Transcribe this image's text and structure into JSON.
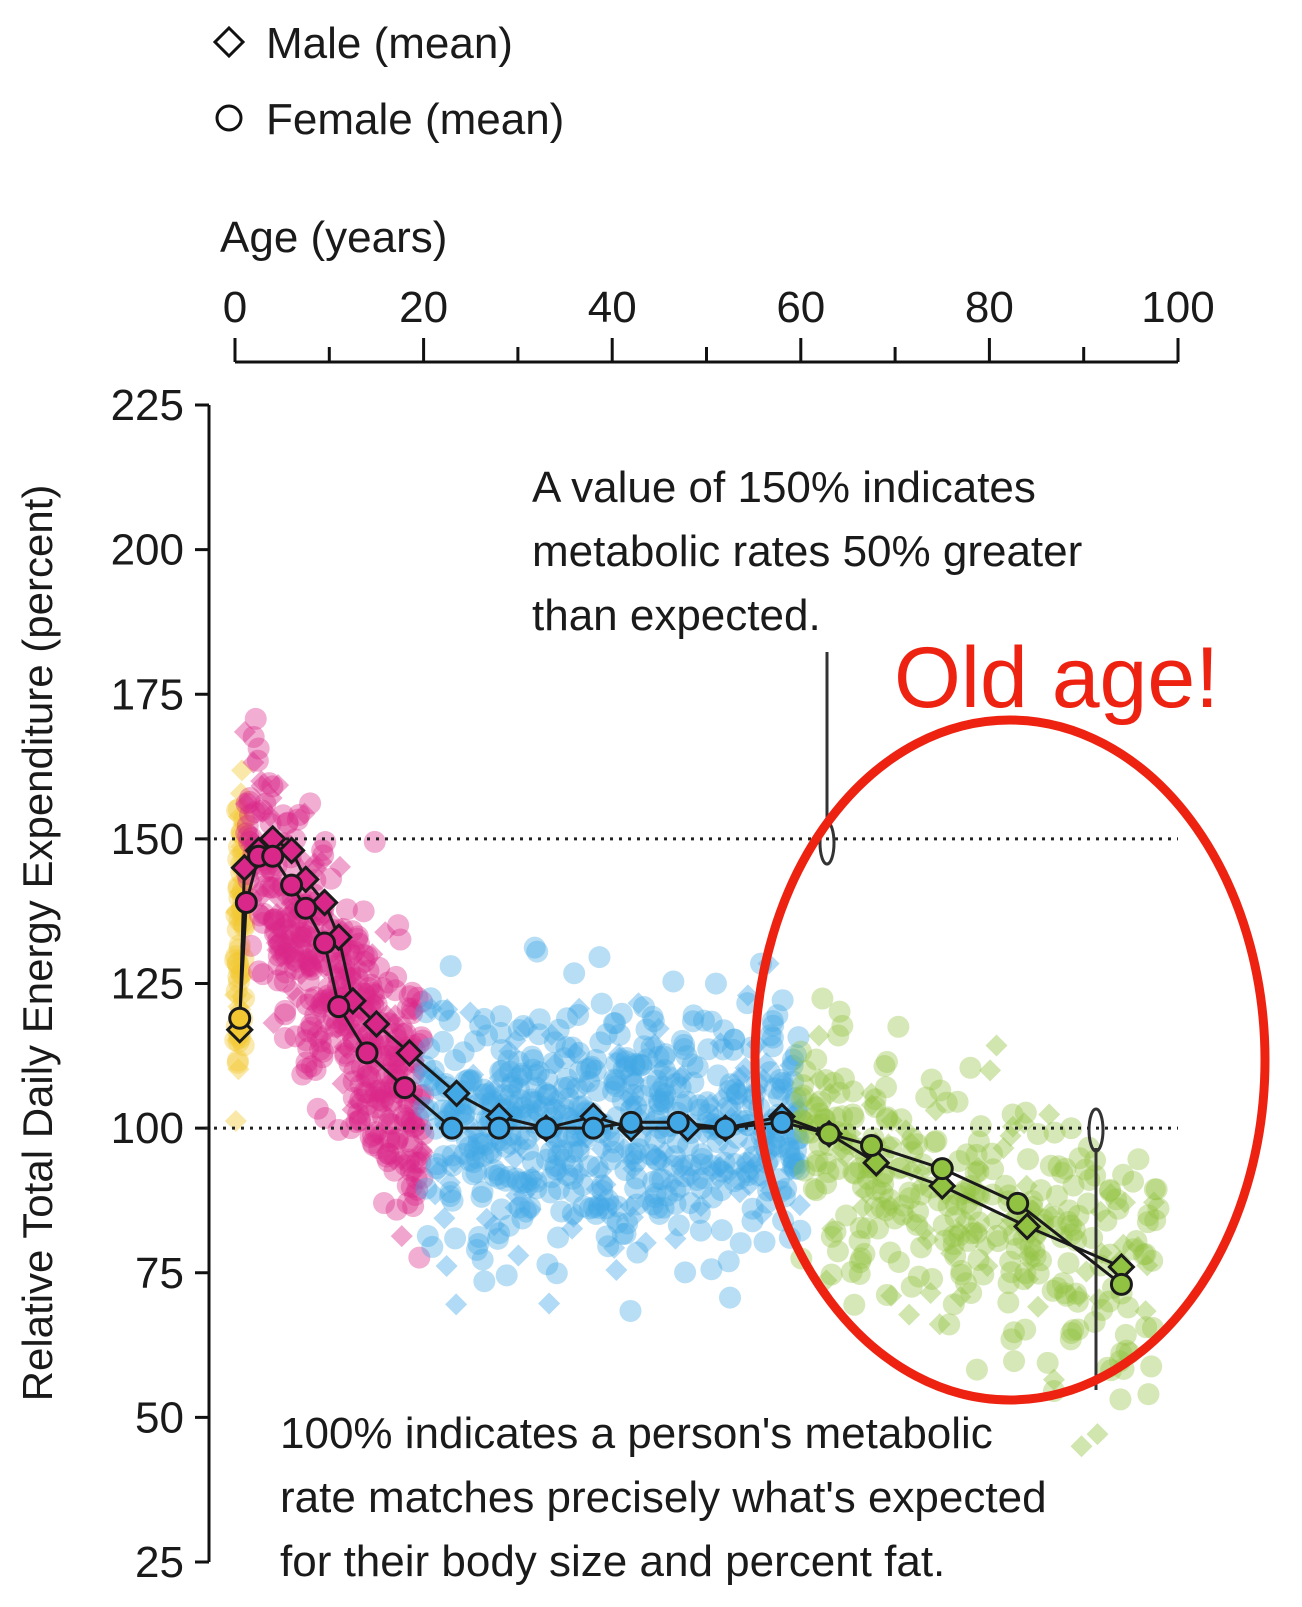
{
  "chart_data": {
    "type": "scatter",
    "xlabel": "Age (years)",
    "ylabel": "Relative Total Daily Energy Expenditure (percent)",
    "xlim": [
      0,
      100
    ],
    "ylim": [
      25,
      225
    ],
    "x_ticks": [
      "0",
      "20",
      "40",
      "60",
      "80",
      "100"
    ],
    "y_ticks": [
      "225",
      "200",
      "175",
      "150",
      "125",
      "100",
      "75",
      "50",
      "25"
    ],
    "x_axis_position": "top",
    "grid": false,
    "reference_lines": [
      150,
      100
    ],
    "legend": {
      "placement": "top-left",
      "entries": [
        {
          "label": "Male (mean)",
          "marker": "diamond"
        },
        {
          "label": "Female (mean)",
          "marker": "circle"
        }
      ]
    },
    "series": [
      {
        "name": "Male (mean)",
        "marker": "diamond",
        "x": [
          0.5,
          1,
          2.5,
          4,
          6,
          7.5,
          9.5,
          11,
          12.5,
          15,
          18.5,
          23.5,
          28,
          33,
          38,
          42,
          48,
          52,
          58,
          63,
          68,
          75,
          84,
          94
        ],
        "y": [
          117,
          145,
          148,
          150,
          148,
          143,
          139,
          133,
          122,
          118,
          113,
          106,
          102,
          100,
          102,
          100,
          100,
          100,
          102,
          99,
          94,
          90,
          83,
          76
        ]
      },
      {
        "name": "Female (mean)",
        "marker": "circle",
        "x": [
          0.5,
          1.2,
          2.5,
          4,
          6,
          7.5,
          9.5,
          11,
          14,
          18,
          23,
          28,
          33,
          38,
          42,
          47,
          52,
          58,
          63,
          67.5,
          75,
          83,
          94
        ],
        "y": [
          119,
          139,
          147,
          147,
          142,
          138,
          132,
          121,
          113,
          107,
          100,
          100,
          100,
          100,
          101,
          101,
          100,
          101,
          99,
          97,
          93,
          87,
          73
        ]
      }
    ],
    "distribution_groups": [
      {
        "ages": [
          0,
          1
        ],
        "color": "#f2c731"
      },
      {
        "ages": [
          1,
          20
        ],
        "color": "#d9288a"
      },
      {
        "ages": [
          20,
          60
        ],
        "color": "#43a8e6"
      },
      {
        "ages": [
          60,
          100
        ],
        "color": "#92c241"
      }
    ],
    "annotations": [
      {
        "text": [
          "A value of 150% indicates",
          "metabolic rates 50% greater",
          "than expected."
        ],
        "points_to": [
          63,
          150
        ]
      },
      {
        "text": [
          "100% indicates a person's metabolic",
          "rate matches precisely what's expected",
          "for their body size and percent fat."
        ],
        "points_to": [
          91,
          100
        ]
      }
    ],
    "highlight": {
      "text": "Old age!",
      "color": "#ee2211",
      "shape": "ellipse",
      "region_ages": [
        61,
        100
      ]
    }
  }
}
